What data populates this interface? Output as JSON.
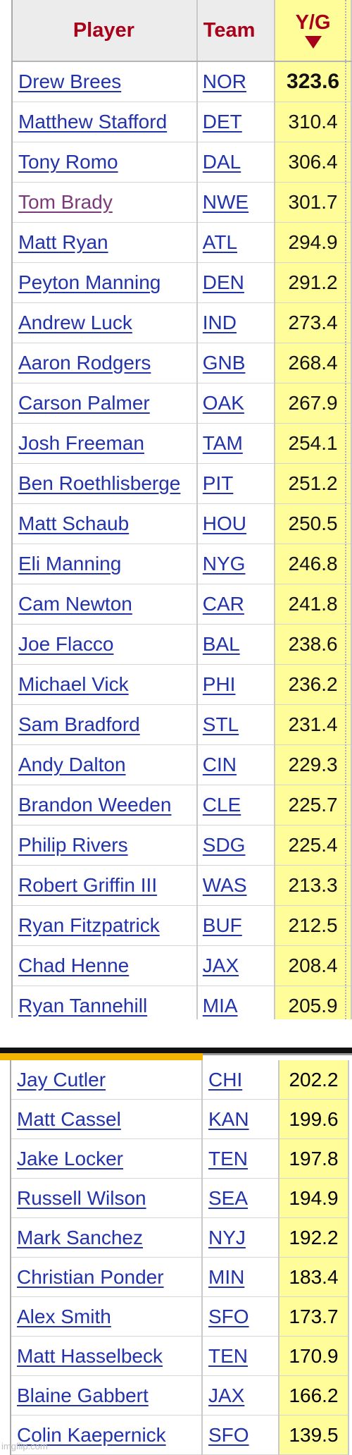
{
  "header": {
    "player": "Player",
    "team": "Team",
    "yg": "Y/G"
  },
  "rows_top": [
    {
      "player": "Drew Brees",
      "team": "NOR",
      "yg": "323.6"
    },
    {
      "player": "Matthew Stafford",
      "team": "DET",
      "yg": "310.4"
    },
    {
      "player": "Tony Romo",
      "team": "DAL",
      "yg": "306.4"
    },
    {
      "player": "Tom Brady",
      "team": "NWE",
      "yg": "301.7"
    },
    {
      "player": "Matt Ryan",
      "team": "ATL",
      "yg": "294.9"
    },
    {
      "player": "Peyton Manning",
      "team": "DEN",
      "yg": "291.2"
    },
    {
      "player": "Andrew Luck",
      "team": "IND",
      "yg": "273.4"
    },
    {
      "player": "Aaron Rodgers",
      "team": "GNB",
      "yg": "268.4"
    },
    {
      "player": "Carson Palmer",
      "team": "OAK",
      "yg": "267.9"
    },
    {
      "player": "Josh Freeman",
      "team": "TAM",
      "yg": "254.1"
    },
    {
      "player": "Ben Roethlisberge",
      "team": "PIT",
      "yg": "251.2"
    },
    {
      "player": "Matt Schaub",
      "team": "HOU",
      "yg": "250.5"
    },
    {
      "player": "Eli Manning",
      "team": "NYG",
      "yg": "246.8"
    },
    {
      "player": "Cam Newton",
      "team": "CAR",
      "yg": "241.8"
    },
    {
      "player": "Joe Flacco",
      "team": "BAL",
      "yg": "238.6"
    },
    {
      "player": "Michael Vick",
      "team": "PHI",
      "yg": "236.2"
    },
    {
      "player": "Sam Bradford",
      "team": "STL",
      "yg": "231.4"
    },
    {
      "player": "Andy Dalton",
      "team": "CIN",
      "yg": "229.3"
    },
    {
      "player": "Brandon Weeden",
      "team": "CLE",
      "yg": "225.7"
    },
    {
      "player": "Philip Rivers",
      "team": "SDG",
      "yg": "225.4"
    },
    {
      "player": "Robert Griffin III",
      "team": "WAS",
      "yg": "213.3"
    },
    {
      "player": "Ryan Fitzpatrick",
      "team": "BUF",
      "yg": "212.5"
    },
    {
      "player": "Chad Henne",
      "team": "JAX",
      "yg": "208.4"
    },
    {
      "player": "Ryan Tannehill",
      "team": "MIA",
      "yg": "205.9"
    }
  ],
  "rows_bottom": [
    {
      "player": "Jay Cutler",
      "team": "CHI",
      "yg": "202.2"
    },
    {
      "player": "Matt Cassel",
      "team": "KAN",
      "yg": "199.6"
    },
    {
      "player": "Jake Locker",
      "team": "TEN",
      "yg": "197.8"
    },
    {
      "player": "Russell Wilson",
      "team": "SEA",
      "yg": "194.9"
    },
    {
      "player": "Mark Sanchez",
      "team": "NYJ",
      "yg": "192.2"
    },
    {
      "player": "Christian Ponder",
      "team": "MIN",
      "yg": "183.4"
    },
    {
      "player": "Alex Smith",
      "team": "SFO",
      "yg": "173.7"
    },
    {
      "player": "Matt Hasselbeck",
      "team": "TEN",
      "yg": "170.9"
    },
    {
      "player": "Blaine Gabbert",
      "team": "JAX",
      "yg": "166.2"
    },
    {
      "player": "Colin Kaepernick",
      "team": "SFO",
      "yg": "139.5"
    }
  ],
  "watermark": "imgflip.com"
}
